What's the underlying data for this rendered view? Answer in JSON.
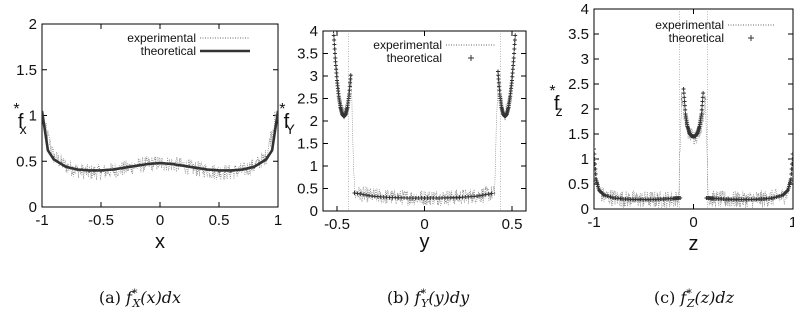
{
  "chart_data": [
    {
      "type": "line",
      "caption": "(a) f*X(x)dx",
      "xlabel": "x",
      "ylabel": "f*x",
      "xlim": [
        -1,
        1
      ],
      "ylim": [
        0,
        2
      ],
      "xticks": [
        "-1",
        "-0.5",
        "0",
        "0.5",
        "1"
      ],
      "yticks": [
        "0",
        "0.5",
        "1",
        "1.5",
        "2"
      ],
      "legend_position": "top-right",
      "grid": false,
      "series": [
        {
          "name": "experimental",
          "style": "dotted-noisy",
          "x": [
            -0.98,
            -0.9,
            -0.8,
            -0.7,
            -0.6,
            -0.5,
            -0.4,
            -0.3,
            -0.2,
            -0.1,
            0.0,
            0.1,
            0.2,
            0.3,
            0.4,
            0.5,
            0.6,
            0.7,
            0.8,
            0.9,
            0.98
          ],
          "y": [
            0.9,
            0.55,
            0.45,
            0.4,
            0.38,
            0.38,
            0.4,
            0.42,
            0.45,
            0.47,
            0.48,
            0.47,
            0.45,
            0.42,
            0.4,
            0.38,
            0.38,
            0.4,
            0.45,
            0.55,
            1.0
          ]
        },
        {
          "name": "theoretical",
          "style": "solid-thick",
          "x": [
            -1.0,
            -0.95,
            -0.9,
            -0.8,
            -0.7,
            -0.6,
            -0.5,
            -0.4,
            -0.3,
            -0.2,
            -0.1,
            0.0,
            0.1,
            0.2,
            0.3,
            0.4,
            0.5,
            0.6,
            0.7,
            0.8,
            0.9,
            0.95,
            1.0
          ],
          "y": [
            1.05,
            0.62,
            0.52,
            0.44,
            0.41,
            0.4,
            0.4,
            0.41,
            0.43,
            0.45,
            0.47,
            0.48,
            0.47,
            0.45,
            0.43,
            0.41,
            0.4,
            0.4,
            0.41,
            0.44,
            0.52,
            0.62,
            1.05
          ]
        }
      ]
    },
    {
      "type": "line",
      "caption": "(b) f*Y(y)dy",
      "xlabel": "y",
      "ylabel": "f*Y",
      "xlim": [
        -0.58,
        0.58
      ],
      "ylim": [
        0,
        4
      ],
      "xticks": [
        "-0.5",
        "0",
        "0.5"
      ],
      "yticks": [
        "0",
        "0.5",
        "1",
        "1.5",
        "2",
        "2.5",
        "3",
        "3.5",
        "4"
      ],
      "legend_position": "top-right",
      "grid": false,
      "series": [
        {
          "name": "experimental",
          "style": "dotted-noisy",
          "x": [
            -0.52,
            -0.5,
            -0.48,
            -0.46,
            -0.44,
            -0.42,
            -0.4,
            -0.3,
            -0.2,
            -0.1,
            0.0,
            0.1,
            0.2,
            0.3,
            0.4,
            0.42,
            0.44,
            0.46,
            0.48,
            0.5,
            0.52
          ],
          "y": [
            4.0,
            3.0,
            2.4,
            2.15,
            2.4,
            3.0,
            0.4,
            0.34,
            0.31,
            0.3,
            0.3,
            0.3,
            0.31,
            0.34,
            0.4,
            3.0,
            2.4,
            2.15,
            2.4,
            3.0,
            4.0
          ]
        },
        {
          "name": "theoretical",
          "style": "plus-markers",
          "x": [
            -0.52,
            -0.51,
            -0.5,
            -0.49,
            -0.48,
            -0.47,
            -0.46,
            -0.45,
            -0.44,
            -0.43,
            -0.42,
            -0.4,
            -0.3,
            -0.2,
            -0.1,
            0.0,
            0.1,
            0.2,
            0.3,
            0.4,
            0.42,
            0.43,
            0.44,
            0.45,
            0.46,
            0.47,
            0.48,
            0.49,
            0.5,
            0.51,
            0.52
          ],
          "y": [
            4.0,
            3.4,
            2.9,
            2.55,
            2.3,
            2.15,
            2.1,
            2.15,
            2.3,
            2.6,
            3.1,
            0.4,
            0.33,
            0.3,
            0.29,
            0.29,
            0.29,
            0.3,
            0.33,
            0.4,
            3.1,
            2.6,
            2.3,
            2.15,
            2.1,
            2.15,
            2.3,
            2.55,
            2.9,
            3.4,
            4.0
          ]
        }
      ]
    },
    {
      "type": "line",
      "caption": "(c) f*Z(z)dz",
      "xlabel": "z",
      "ylabel": "f*z",
      "xlim": [
        -1,
        1
      ],
      "ylim": [
        0,
        4
      ],
      "xticks": [
        "-1",
        "0",
        "1"
      ],
      "yticks": [
        "0",
        "0.5",
        "1",
        "1.5",
        "2",
        "2.5",
        "3",
        "3.5",
        "4"
      ],
      "legend_position": "top-right",
      "grid": false,
      "series": [
        {
          "name": "experimental",
          "style": "dotted-noisy",
          "x": [
            -0.99,
            -0.95,
            -0.9,
            -0.7,
            -0.5,
            -0.3,
            -0.2,
            -0.15,
            -0.12,
            -0.08,
            -0.04,
            0.0,
            0.04,
            0.08,
            0.12,
            0.15,
            0.2,
            0.3,
            0.5,
            0.7,
            0.9,
            0.95,
            0.99
          ],
          "y": [
            0.8,
            0.35,
            0.25,
            0.2,
            0.19,
            0.19,
            0.2,
            0.21,
            2.2,
            1.7,
            1.5,
            1.45,
            1.5,
            1.7,
            2.2,
            0.21,
            0.2,
            0.19,
            0.19,
            0.2,
            0.25,
            0.35,
            0.8
          ]
        },
        {
          "name": "theoretical",
          "style": "plus-markers",
          "x": [
            -1.0,
            -0.98,
            -0.95,
            -0.9,
            -0.8,
            -0.7,
            -0.6,
            -0.5,
            -0.4,
            -0.3,
            -0.2,
            -0.15,
            -0.13,
            -0.12,
            -0.1,
            -0.08,
            -0.06,
            -0.04,
            -0.02,
            0.0,
            0.02,
            0.04,
            0.06,
            0.08,
            0.1,
            0.12,
            0.13,
            0.15,
            0.2,
            0.3,
            0.4,
            0.5,
            0.6,
            0.7,
            0.8,
            0.9,
            0.95,
            0.98,
            1.0
          ],
          "y": [
            1.2,
            0.6,
            0.38,
            0.28,
            0.22,
            0.2,
            0.19,
            0.19,
            0.19,
            0.2,
            0.21,
            0.22,
            0.22,
            4.0,
            2.4,
            1.9,
            1.65,
            1.52,
            1.46,
            1.45,
            1.46,
            1.52,
            1.65,
            1.9,
            2.4,
            4.0,
            0.22,
            0.22,
            0.21,
            0.2,
            0.19,
            0.19,
            0.19,
            0.2,
            0.22,
            0.28,
            0.38,
            0.6,
            1.2
          ]
        }
      ]
    }
  ]
}
